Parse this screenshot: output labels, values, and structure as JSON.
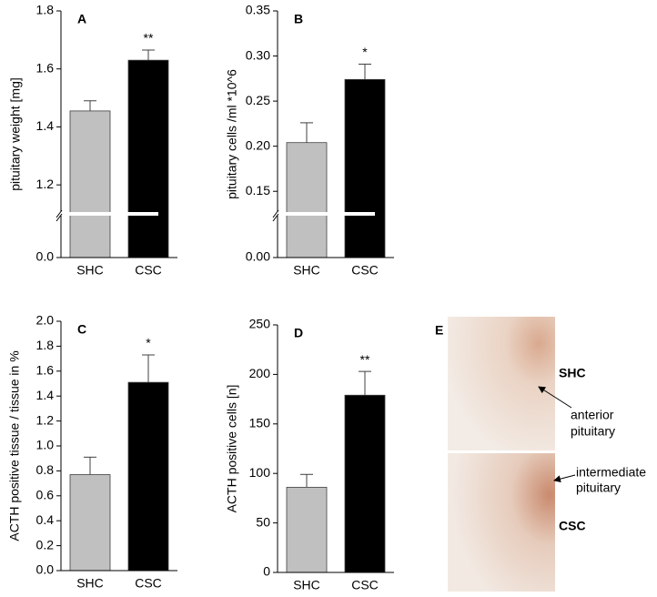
{
  "chart_data": [
    {
      "type": "bar",
      "panel_label": "A",
      "y_label": "pituitary weight [mg]",
      "categories": [
        "SHC",
        "CSC"
      ],
      "values": [
        1.455,
        1.63
      ],
      "errors": [
        0.035,
        0.035
      ],
      "colors": [
        "#c0c0c0",
        "#000000"
      ],
      "ylim": [
        0,
        1.8
      ],
      "ybreak": 1.1,
      "yticks": [
        {
          "value": 0,
          "label": "0.0"
        },
        1.2,
        1.4,
        1.6,
        1.8
      ],
      "annotations": [
        {
          "category": "CSC",
          "text": "**"
        }
      ]
    },
    {
      "type": "bar",
      "panel_label": "B",
      "y_label": "pituitary cells /ml *10^6",
      "categories": [
        "SHC",
        "CSC"
      ],
      "values": [
        0.204,
        0.274
      ],
      "errors": [
        0.022,
        0.017
      ],
      "colors": [
        "#c0c0c0",
        "#000000"
      ],
      "ylim": [
        0,
        0.35
      ],
      "ybreak": 0.125,
      "yticks": [
        {
          "value": 0,
          "label": "0.00"
        },
        0.15,
        {
          "value": 0.2,
          "label": "0.20"
        },
        0.25,
        {
          "value": 0.3,
          "label": "0.30"
        },
        0.35
      ],
      "annotations": [
        {
          "category": "CSC",
          "text": "*"
        }
      ]
    },
    {
      "type": "bar",
      "panel_label": "C",
      "y_label": "ACTH positive tissue / tissue in %",
      "categories": [
        "SHC",
        "CSC"
      ],
      "values": [
        0.77,
        1.51
      ],
      "errors": [
        0.14,
        0.22
      ],
      "colors": [
        "#c0c0c0",
        "#000000"
      ],
      "ylim": [
        0,
        2.0
      ],
      "yticks": [
        {
          "value": 0,
          "label": "0.0"
        },
        0.2,
        0.4,
        0.6,
        0.8,
        {
          "value": 1,
          "label": "1.0"
        },
        1.2,
        1.4,
        1.6,
        1.8,
        {
          "value": 2,
          "label": "2.0"
        }
      ],
      "annotations": [
        {
          "category": "CSC",
          "text": "*"
        }
      ]
    },
    {
      "type": "bar",
      "panel_label": "D",
      "y_label": "ACTH positive cells [n]",
      "categories": [
        "SHC",
        "CSC"
      ],
      "values": [
        86,
        179
      ],
      "errors": [
        13,
        24
      ],
      "colors": [
        "#c0c0c0",
        "#000000"
      ],
      "ylim": [
        0,
        250
      ],
      "yticks": [
        0,
        50,
        100,
        150,
        200,
        250
      ],
      "annotations": [
        {
          "category": "CSC",
          "text": "**"
        }
      ]
    }
  ],
  "image_panel": {
    "panel_label": "E",
    "top_label": "SHC",
    "bottom_label": "CSC",
    "anterior": [
      "anterior",
      "pituitary"
    ],
    "intermediate": [
      "intermediate",
      "pituitary"
    ]
  }
}
